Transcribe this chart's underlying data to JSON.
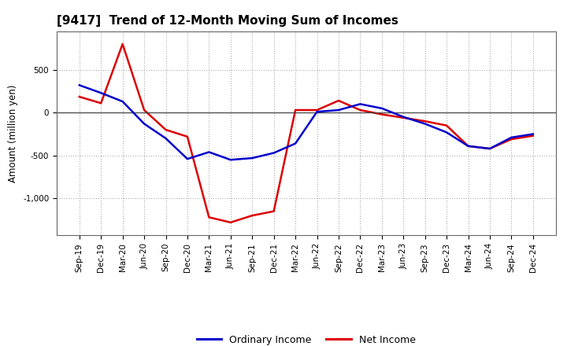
{
  "title": "[9417]  Trend of 12-Month Moving Sum of Incomes",
  "ylabel": "Amount (million yen)",
  "x_labels": [
    "Sep-19",
    "Dec-19",
    "Mar-20",
    "Jun-20",
    "Sep-20",
    "Dec-20",
    "Mar-21",
    "Jun-21",
    "Sep-21",
    "Dec-21",
    "Mar-22",
    "Jun-22",
    "Sep-22",
    "Dec-22",
    "Mar-23",
    "Jun-23",
    "Sep-23",
    "Dec-23",
    "Mar-24",
    "Jun-24",
    "Sep-24",
    "Dec-24"
  ],
  "ordinary_income": [
    320,
    230,
    130,
    -130,
    -300,
    -540,
    -460,
    -550,
    -530,
    -470,
    -360,
    10,
    30,
    100,
    50,
    -50,
    -130,
    -230,
    -390,
    -420,
    -290,
    -250
  ],
  "net_income": [
    185,
    110,
    800,
    30,
    -200,
    -280,
    -1220,
    -1280,
    -1200,
    -1150,
    30,
    30,
    140,
    30,
    -20,
    -60,
    -100,
    -150,
    -390,
    -420,
    -310,
    -270
  ],
  "ordinary_color": "#0000cc",
  "net_color": "#dd0000",
  "ylim_min": -1430,
  "ylim_max": 950,
  "yticks": [
    -1000,
    -500,
    0,
    500
  ],
  "background_color": "#ffffff",
  "grid_color": "#999999",
  "line_width": 1.8,
  "legend_labels": [
    "Ordinary Income",
    "Net Income"
  ],
  "title_fontsize": 11,
  "tick_fontsize": 7.5,
  "ylabel_fontsize": 8.5
}
